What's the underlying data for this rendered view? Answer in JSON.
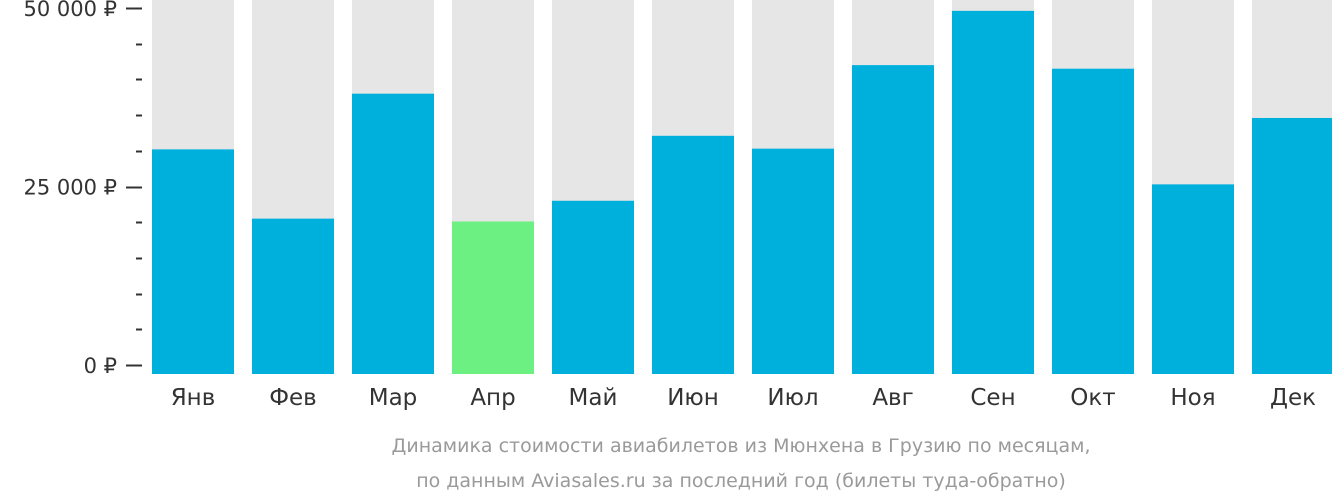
{
  "chart_data": {
    "type": "bar",
    "categories": [
      "Янв",
      "Фев",
      "Мар",
      "Апр",
      "Май",
      "Июн",
      "Июл",
      "Авг",
      "Сен",
      "Окт",
      "Ноя",
      "Дек"
    ],
    "values": [
      30200,
      20500,
      38000,
      20100,
      23000,
      32100,
      30300,
      42000,
      49600,
      41500,
      25300,
      34600
    ],
    "highlight_index": 3,
    "ylim": [
      0,
      50000
    ],
    "y_ticks": [
      {
        "value": 0,
        "label": "0 ₽"
      },
      {
        "value": 25000,
        "label": "25 000 ₽"
      },
      {
        "value": 50000,
        "label": "50 000 ₽"
      }
    ],
    "minor_tick_step": 5000,
    "caption_lines": [
      "Динамика стоимости авиабилетов из Мюнхена в Грузию по месяцам,",
      "по данным Aviasales.ru за последний год (билеты туда-обратно)"
    ],
    "colors": {
      "bar": "#00b0dc",
      "highlight": "#6cf082",
      "track": "#e6e6e6",
      "axis": "#333333"
    }
  }
}
